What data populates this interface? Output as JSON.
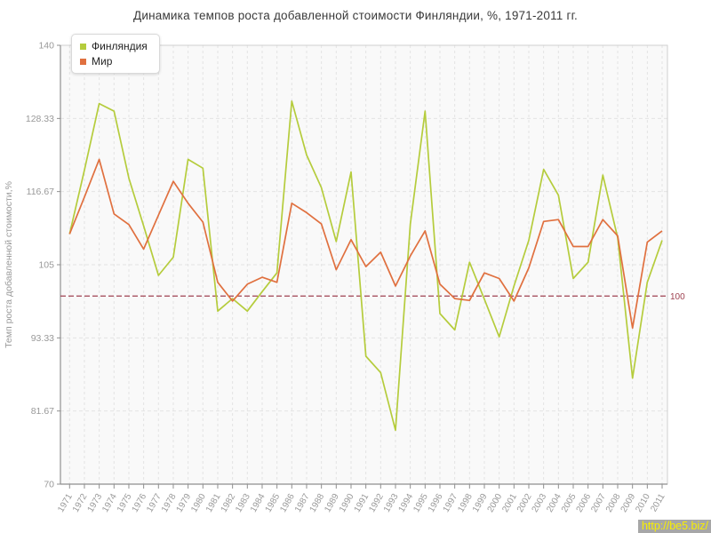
{
  "chart_data": {
    "type": "line",
    "title": "Динамика темпов роста добавленной стоимости Финляндии, %, 1971-2011 гг.",
    "ylabel": "Темп роста добавленной стоимости,%",
    "xlabel": "",
    "ylim": [
      70,
      140
    ],
    "grid": true,
    "legend_position": "top-left",
    "ytick_labels": [
      "140",
      "128.33",
      "116.67",
      "105",
      "93.33",
      "81.67",
      "70"
    ],
    "x": [
      1971,
      1972,
      1973,
      1974,
      1975,
      1976,
      1977,
      1978,
      1979,
      1980,
      1981,
      1982,
      1983,
      1984,
      1985,
      1986,
      1987,
      1988,
      1989,
      1990,
      1991,
      1992,
      1993,
      1994,
      1995,
      1996,
      1997,
      1998,
      1999,
      2000,
      2001,
      2002,
      2003,
      2004,
      2005,
      2006,
      2007,
      2008,
      2009,
      2010,
      2011
    ],
    "series": [
      {
        "name": "Финляндия",
        "color": "#b5cc3c",
        "values": [
          109.9,
          120.1,
          130.7,
          129.5,
          118.8,
          111.2,
          103.3,
          106.2,
          121.8,
          120.4,
          97.6,
          99.6,
          97.6,
          100.7,
          103.7,
          131.1,
          122.5,
          117.3,
          108.7,
          119.8,
          90.4,
          87.8,
          78.6,
          111.5,
          129.5,
          97.2,
          94.6,
          105.4,
          99.5,
          93.5,
          101.6,
          108.9,
          120.2,
          116.1,
          102.8,
          105.4,
          119.3,
          109.3,
          86.9,
          102.2,
          108.9
        ]
      },
      {
        "name": "Мир",
        "color": "#e0703f",
        "values": [
          109.9,
          115.8,
          121.8,
          113.1,
          111.4,
          107.5,
          112.9,
          118.3,
          114.8,
          111.8,
          102.2,
          99.2,
          101.9,
          103.0,
          102.2,
          114.8,
          113.3,
          111.5,
          104.2,
          109.0,
          104.7,
          107.0,
          101.6,
          106.4,
          110.4,
          101.9,
          99.6,
          99.3,
          103.7,
          102.8,
          99.2,
          104.5,
          111.9,
          112.2,
          107.9,
          107.9,
          112.2,
          109.6,
          94.9,
          108.6,
          110.4
        ]
      }
    ],
    "reference_line": {
      "value": 100,
      "label": "100",
      "color": "#9e4150"
    },
    "colors": {
      "plot_background": "#f9f9f9",
      "grid": "#e3e3e3",
      "axis": "#8f8f8f",
      "box_border": "#cfcfcf",
      "tick_text": "#999999",
      "title_text": "#3a3a3a"
    }
  },
  "watermark": {
    "text": "http://be5.biz/",
    "background": "#a7a7a7",
    "color": "#f8ef00"
  }
}
